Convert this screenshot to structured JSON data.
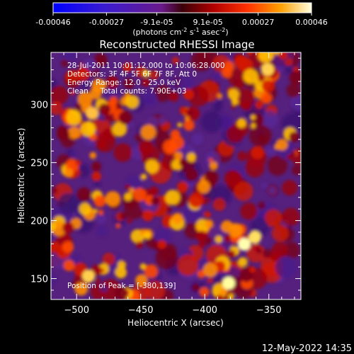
{
  "colorbar": {
    "tick_labels": [
      "-0.00046",
      "-0.00027",
      "-9.1e-05",
      "9.1e-05",
      "0.00027",
      "0.00046"
    ],
    "tick_values": [
      -0.00046,
      -0.00027,
      -9.1e-05,
      9.1e-05,
      0.00027,
      0.00046
    ],
    "range": [
      -0.00046,
      0.00046
    ],
    "units_text": "(photons cm",
    "units_exp1": "-2",
    "units_mid": " s",
    "units_exp2": "-1",
    "units_end": " asec",
    "units_exp3": "-2",
    "units_close": ")"
  },
  "chart_data": {
    "type": "heatmap",
    "title": "Reconstructed RHESSI Image",
    "xlabel": "Heliocentric X (arcsec)",
    "ylabel": "Heliocentric Y (arcsec)",
    "xlim": [
      -520,
      -325
    ],
    "ylim": [
      132,
      345
    ],
    "x_ticks": [
      -500,
      -450,
      -400,
      -350
    ],
    "y_ticks": [
      150,
      200,
      250,
      300
    ],
    "x_tick_labels": [
      "−500",
      "−450",
      "−400",
      "−350"
    ],
    "y_tick_labels": [
      "150",
      "200",
      "250",
      "300"
    ],
    "colormap": [
      "#0000ff",
      "#6a0dad",
      "#8b0000",
      "#ff2200",
      "#ffa500",
      "#ffffaa"
    ],
    "peak": [
      -380,
      139
    ],
    "annotations": [
      "28-Jul-2011 10:01:12.000 to 10:06:28.000",
      "Detectors: 3F 4F 5F 6F 7F 8F, Att 0",
      "Energy Range: 12.0 - 25.0 keV",
      "Clean     Total counts: 7.90E+03"
    ],
    "peak_text": "Position of Peak = [-380,139]"
  },
  "footer": {
    "timestamp": "12-May-2022 14:35"
  }
}
